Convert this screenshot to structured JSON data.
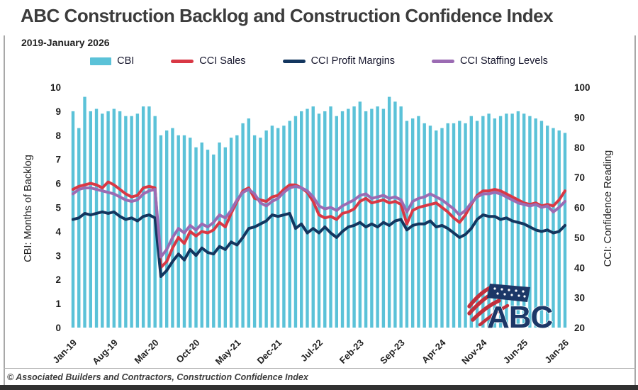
{
  "title": "ABC Construction Backlog and Construction Confidence Index",
  "subtitle": "2019-January 2026",
  "footer": "© Associated Builders and Contractors, Construction Confidence Index",
  "logo": {
    "text": "ABC"
  },
  "colors": {
    "bar": "#5BC2D8",
    "sales": "#D93845",
    "profit_margins": "#13365F",
    "staffing": "#9B6BB3",
    "axis_text": "#1f1f1f"
  },
  "chart_data": {
    "type": "bar+line combo",
    "title": "ABC Construction Backlog and Construction Confidence Index",
    "subtitle": "2019-January 2026",
    "grid": "off",
    "legend_position": "top",
    "categories": [
      "Jan-19",
      "Feb-19",
      "Mar-19",
      "Apr-19",
      "May-19",
      "Jun-19",
      "Jul-19",
      "Aug-19",
      "Sep-19",
      "Oct-19",
      "Nov-19",
      "Dec-19",
      "Jan-20",
      "Feb-20",
      "Mar-20",
      "Apr-20",
      "May-20",
      "Jun-20",
      "Jul-20",
      "Aug-20",
      "Sep-20",
      "Oct-20",
      "Nov-20",
      "Dec-20",
      "Jan-21",
      "Feb-21",
      "Mar-21",
      "Apr-21",
      "May-21",
      "Jun-21",
      "Jul-21",
      "Aug-21",
      "Sep-21",
      "Oct-21",
      "Nov-21",
      "Dec-21",
      "Jan-22",
      "Feb-22",
      "Mar-22",
      "Apr-22",
      "May-22",
      "Jun-22",
      "Jul-22",
      "Aug-22",
      "Sep-22",
      "Oct-22",
      "Nov-22",
      "Dec-22",
      "Jan-23",
      "Feb-23",
      "Mar-23",
      "Apr-23",
      "May-23",
      "Jun-23",
      "Jul-23",
      "Aug-23",
      "Sep-23",
      "Oct-23",
      "Nov-23",
      "Dec-23",
      "Jan-24",
      "Feb-24",
      "Mar-24",
      "Apr-24",
      "May-24",
      "Jun-24",
      "Jul-24",
      "Aug-24",
      "Sep-24",
      "Oct-24",
      "Nov-24",
      "Dec-24",
      "Jan-25",
      "Feb-25",
      "Mar-25",
      "Apr-25",
      "May-25",
      "Jun-25",
      "Jul-25",
      "Aug-25",
      "Sep-25",
      "Oct-25",
      "Nov-25",
      "Dec-25",
      "Jan-26"
    ],
    "x_tick_indices": [
      0,
      7,
      14,
      21,
      28,
      35,
      42,
      49,
      56,
      63,
      70,
      77,
      84
    ],
    "y_left": {
      "title": "CBI: Months of Backlog",
      "min": 0,
      "max": 10,
      "step": 1
    },
    "y_right": {
      "title": "CCI: Confidence Reading",
      "min": 20,
      "max": 100,
      "step": 10
    },
    "series": [
      {
        "name": "CBI",
        "type": "bar",
        "axis": "left",
        "color": "#5BC2D8",
        "values": [
          9.0,
          8.3,
          9.6,
          9.0,
          9.1,
          8.9,
          9.0,
          9.1,
          9.0,
          8.8,
          8.8,
          8.9,
          9.2,
          9.2,
          8.8,
          8.0,
          8.2,
          8.3,
          8.0,
          8.0,
          7.9,
          7.5,
          7.7,
          7.4,
          7.2,
          7.7,
          7.5,
          7.9,
          8.0,
          8.5,
          8.7,
          8.0,
          7.9,
          8.2,
          8.4,
          8.3,
          8.4,
          8.6,
          8.8,
          9.0,
          9.1,
          9.2,
          8.9,
          9.0,
          9.2,
          8.8,
          9.0,
          9.1,
          9.2,
          9.4,
          9.0,
          9.1,
          9.2,
          9.1,
          9.6,
          9.4,
          9.2,
          8.6,
          8.7,
          8.8,
          8.5,
          8.4,
          8.2,
          8.3,
          8.5,
          8.5,
          8.6,
          8.5,
          8.8,
          8.6,
          8.8,
          8.9,
          8.7,
          8.8,
          8.9,
          8.9,
          9.0,
          8.9,
          8.8,
          8.7,
          8.6,
          8.4,
          8.3,
          8.2,
          8.1
        ]
      },
      {
        "name": "CCI Sales",
        "type": "line",
        "axis": "right",
        "color": "#D93845",
        "values": [
          66,
          67,
          67.5,
          68,
          67.5,
          66.5,
          68.5,
          67.5,
          66,
          64.5,
          63.5,
          64,
          66.5,
          67,
          66.5,
          40,
          42,
          46.5,
          50,
          48,
          52,
          50.5,
          52,
          51.5,
          52.5,
          55,
          53.5,
          58,
          62,
          65.5,
          66.5,
          63,
          62.5,
          62,
          63.5,
          64,
          66,
          67.5,
          67.5,
          66.5,
          65,
          62,
          57.5,
          56.5,
          57,
          56,
          58,
          58.5,
          59.5,
          62,
          63,
          61.5,
          62,
          62.5,
          61.5,
          62,
          61,
          54.5,
          59,
          60,
          60.5,
          61,
          61.5,
          60,
          58.5,
          56.5,
          55,
          57.5,
          61,
          64,
          65.5,
          65.5,
          66,
          65.5,
          64.5,
          63.5,
          62.5,
          61.5,
          61,
          61.5,
          60.5,
          61,
          60.5,
          62.5,
          65.5
        ]
      },
      {
        "name": "CCI Profit Margins",
        "type": "line",
        "axis": "right",
        "color": "#13365F",
        "values": [
          56,
          56.5,
          58,
          57.5,
          58,
          58.5,
          58,
          58.5,
          57,
          56,
          56.5,
          55.5,
          57,
          57.5,
          56.5,
          37,
          39,
          42,
          44.5,
          42.5,
          46,
          44,
          46.5,
          45,
          44.5,
          47,
          46,
          48.5,
          47.5,
          50,
          53,
          53.5,
          54.5,
          55.5,
          57.5,
          57,
          57.5,
          58,
          53,
          54.5,
          51.5,
          53,
          51.5,
          53.5,
          51.5,
          50,
          52,
          53.5,
          54,
          55,
          53.5,
          54.5,
          53.5,
          55,
          54,
          55.5,
          56,
          52.5,
          54,
          54.5,
          54.5,
          55.5,
          53.5,
          54,
          53,
          51.5,
          50,
          51,
          53,
          56,
          57.5,
          57,
          57,
          56,
          56.5,
          55.5,
          55,
          54.5,
          53.5,
          52.5,
          52,
          52.5,
          51.5,
          52,
          54
        ]
      },
      {
        "name": "CCI Staffing Levels",
        "type": "line",
        "axis": "right",
        "color": "#9B6BB3",
        "values": [
          64.5,
          66,
          66.5,
          66.5,
          66,
          65.5,
          65,
          64.5,
          63.5,
          62.5,
          62,
          62.5,
          64.5,
          65.5,
          66,
          43.5,
          46,
          50,
          53,
          51.5,
          54,
          52.5,
          54.5,
          53.5,
          55,
          57.5,
          56.5,
          59,
          62.5,
          65,
          66,
          64.5,
          61.5,
          60.5,
          62,
          63,
          65,
          66.5,
          67,
          66.5,
          65.5,
          63.5,
          60.5,
          59.5,
          60,
          59,
          60.5,
          61.5,
          62.5,
          64,
          64.5,
          63,
          63.5,
          64,
          63,
          63.5,
          62.5,
          58.5,
          62,
          63,
          63.5,
          64.5,
          63.5,
          62.5,
          61,
          59.5,
          57.5,
          59,
          61.5,
          63.5,
          64.5,
          64.5,
          65,
          64.5,
          63.5,
          62.5,
          61.5,
          61,
          60.5,
          61,
          60,
          60.5,
          58.5,
          60,
          62
        ]
      }
    ]
  }
}
